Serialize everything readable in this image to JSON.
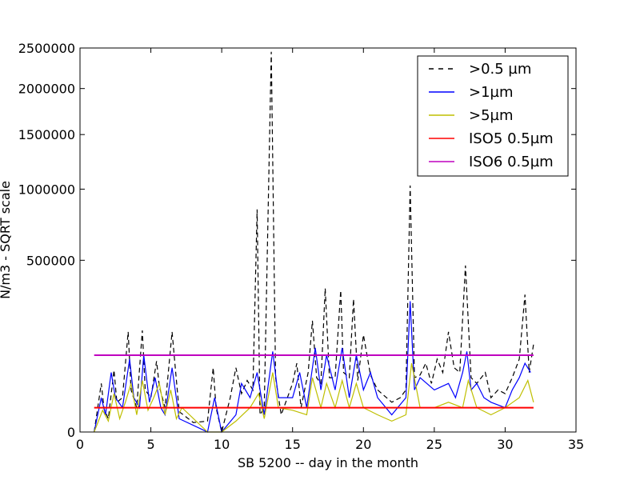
{
  "chart_data": {
    "type": "line",
    "title": "",
    "xlabel": "SB 5200 -- day in the month",
    "ylabel": "N/m3 - SQRT scale",
    "xlim": [
      0,
      35
    ],
    "ylim": [
      0,
      2500000
    ],
    "y_scale": "sqrt",
    "x_ticks": [
      0,
      5,
      10,
      15,
      20,
      25,
      30,
      35
    ],
    "y_ticks": [
      0,
      500000,
      1000000,
      1500000,
      2000000,
      2500000
    ],
    "legend_position": "top-right",
    "series": [
      {
        "name": ">0.5 µm",
        "color": "#000000",
        "style": "dashed",
        "x": [
          1.0,
          1.5,
          1.7,
          2.0,
          2.4,
          2.6,
          3.0,
          3.4,
          3.6,
          4.0,
          4.4,
          4.6,
          5.0,
          5.4,
          5.6,
          6.0,
          6.5,
          7.0,
          8.0,
          9.0,
          9.4,
          9.6,
          10.0,
          10.6,
          11.0,
          11.4,
          11.8,
          12.2,
          12.5,
          12.7,
          13.0,
          13.5,
          13.8,
          14.2,
          15.0,
          15.3,
          15.6,
          16.1,
          16.4,
          16.7,
          17.0,
          17.3,
          17.6,
          18.0,
          18.4,
          18.6,
          19.0,
          19.3,
          19.6,
          20.0,
          20.5,
          21.0,
          22.0,
          22.6,
          23.0,
          23.3,
          23.6,
          24.0,
          24.4,
          24.8,
          25.2,
          25.6,
          26.0,
          26.4,
          26.8,
          27.2,
          27.6,
          28.0,
          28.6,
          29.0,
          29.5,
          30.0,
          30.5,
          31.0,
          31.4,
          31.7,
          32.0
        ],
        "values": [
          0,
          40000,
          9000,
          3000,
          65000,
          15000,
          20000,
          170000,
          30000,
          10000,
          175000,
          30000,
          20000,
          85000,
          35000,
          10000,
          170000,
          7000,
          1500,
          2000,
          70000,
          10000,
          0,
          20000,
          70000,
          25000,
          45000,
          30000,
          840000,
          5000,
          10000,
          2450000,
          50000,
          5000,
          40000,
          80000,
          10000,
          60000,
          210000,
          50000,
          40000,
          350000,
          50000,
          50000,
          340000,
          60000,
          50000,
          300000,
          45000,
          160000,
          55000,
          30000,
          15000,
          20000,
          30000,
          1030000,
          50000,
          55000,
          80000,
          40000,
          90000,
          60000,
          170000,
          70000,
          60000,
          470000,
          50000,
          40000,
          60000,
          20000,
          30000,
          25000,
          50000,
          90000,
          320000,
          60000,
          130000
        ]
      },
      {
        "name": ">1µm",
        "color": "#0000ff",
        "style": "solid",
        "x": [
          1.0,
          1.5,
          1.8,
          2.2,
          2.5,
          3.0,
          3.5,
          3.8,
          4.2,
          4.5,
          4.9,
          5.3,
          5.7,
          6.0,
          6.5,
          7.0,
          9.0,
          9.5,
          10.0,
          11.0,
          11.4,
          12.0,
          12.5,
          13.0,
          13.6,
          14.0,
          15.0,
          15.5,
          16.0,
          16.6,
          17.0,
          17.4,
          18.0,
          18.5,
          19.0,
          19.5,
          20.0,
          20.5,
          21.0,
          22.0,
          23.0,
          23.3,
          23.6,
          24.0,
          25.0,
          26.0,
          26.5,
          27.0,
          27.3,
          27.6,
          28.0,
          28.5,
          29.0,
          30.0,
          30.5,
          31.0,
          31.4,
          31.8
        ],
        "values": [
          0,
          20000,
          5000,
          60000,
          20000,
          10000,
          90000,
          20000,
          10000,
          100000,
          15000,
          50000,
          10000,
          5000,
          70000,
          3000,
          0,
          20000,
          0,
          5000,
          40000,
          20000,
          60000,
          5000,
          110000,
          20000,
          20000,
          60000,
          10000,
          120000,
          30000,
          100000,
          30000,
          120000,
          20000,
          100000,
          30000,
          60000,
          20000,
          5000,
          20000,
          290000,
          30000,
          50000,
          30000,
          40000,
          20000,
          60000,
          110000,
          30000,
          40000,
          20000,
          15000,
          10000,
          30000,
          50000,
          80000,
          60000
        ]
      },
      {
        "name": ">5µm",
        "color": "#bfbf00",
        "style": "solid",
        "x": [
          1.0,
          1.6,
          2.0,
          2.4,
          2.8,
          3.2,
          3.6,
          4.0,
          4.4,
          4.8,
          5.2,
          5.6,
          6.0,
          6.4,
          6.8,
          7.2,
          9.0,
          10.0,
          11.0,
          12.0,
          12.6,
          13.0,
          13.6,
          14.0,
          15.0,
          16.0,
          16.4,
          17.0,
          17.4,
          18.0,
          18.5,
          19.0,
          19.5,
          20.0,
          21.0,
          22.0,
          23.0,
          23.4,
          24.0,
          25.0,
          26.0,
          27.0,
          27.4,
          28.0,
          29.0,
          30.0,
          31.0,
          31.6,
          32.0
        ],
        "values": [
          0,
          8000,
          2000,
          25000,
          3000,
          15000,
          40000,
          5000,
          45000,
          8000,
          20000,
          40000,
          5000,
          30000,
          3000,
          10000,
          0,
          0,
          2000,
          10000,
          25000,
          3000,
          60000,
          10000,
          8000,
          5000,
          50000,
          10000,
          40000,
          10000,
          45000,
          10000,
          40000,
          10000,
          5000,
          2000,
          5000,
          80000,
          10000,
          10000,
          15000,
          10000,
          45000,
          10000,
          5000,
          10000,
          20000,
          45000,
          15000
        ]
      },
      {
        "name": "ISO5 0.5µm",
        "color": "#ff0000",
        "style": "solid",
        "x": [
          1,
          32
        ],
        "values": [
          10000,
          10000
        ]
      },
      {
        "name": "ISO6 0.5µm",
        "color": "#bf00bf",
        "style": "solid",
        "x": [
          1,
          32
        ],
        "values": [
          100000,
          100000
        ]
      }
    ]
  }
}
